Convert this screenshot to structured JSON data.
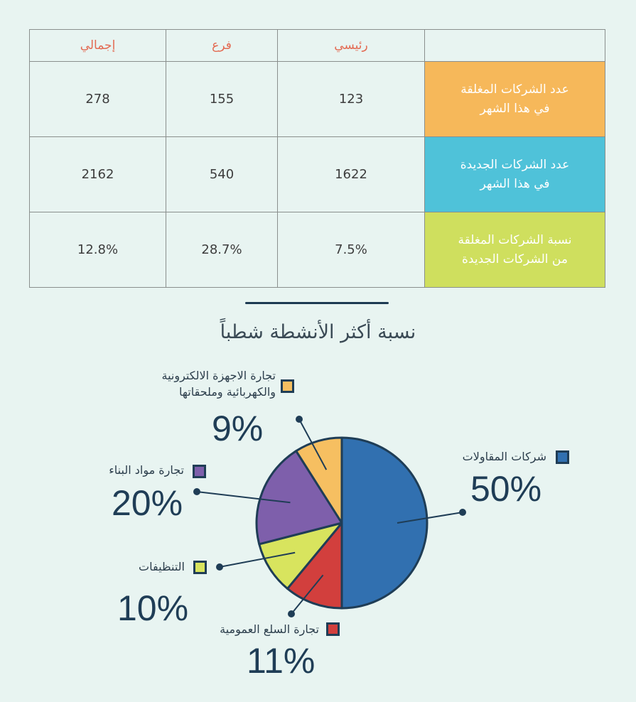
{
  "table": {
    "headers": [
      "إجمالي",
      "فرع",
      "رئيسي",
      ""
    ],
    "rows": [
      {
        "label_line1": "عدد الشركات المغلقة",
        "label_line2": "في هذا الشهر",
        "color": "#f6b85a",
        "main": "123",
        "branch": "155",
        "total": "278"
      },
      {
        "label_line1": "عدد الشركات الجديدة",
        "label_line2": "في هذا الشهر",
        "color": "#4fc2d9",
        "main": "1622",
        "branch": "540",
        "total": "2162"
      },
      {
        "label_line1": "نسبة الشركات المغلقة",
        "label_line2": "من الشركات الجديدة",
        "color": "#cfdf5e",
        "main": "7.5%",
        "branch": "28.7%",
        "total": "12.8%"
      }
    ]
  },
  "chart_data": {
    "type": "pie",
    "title": "نسبة أكثر الأنشطة شطباً",
    "slices": [
      {
        "label": "شركات المقاولات",
        "value": 50,
        "pct_text": "50%",
        "color": "#3170b0"
      },
      {
        "label": "تجارة السلع العمومية",
        "value": 11,
        "pct_text": "11%",
        "color": "#d23f3d"
      },
      {
        "label": "التنظيفات",
        "value": 10,
        "pct_text": "10%",
        "color": "#d8e45e"
      },
      {
        "label": "تجارة مواد البناء",
        "value": 20,
        "pct_text": "20%",
        "color": "#7e5fab"
      },
      {
        "label": "تجارة الاجهزة الالكترونية والكهربائية وملحقاتها",
        "label_line1": "تجارة الاجهزة الالكترونية",
        "label_line2": "والكهربائية وملحقاتها",
        "value": 9,
        "pct_text": "9%",
        "color": "#f6bf61"
      }
    ]
  }
}
